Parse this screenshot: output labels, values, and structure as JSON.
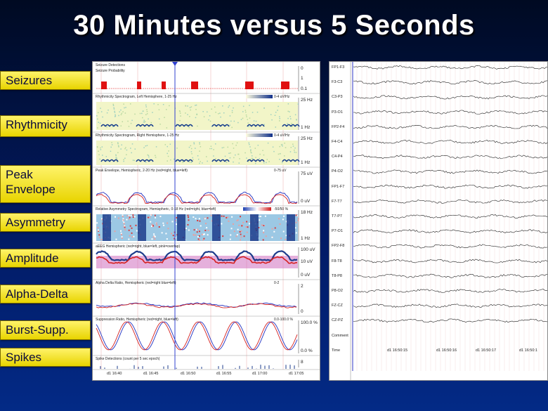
{
  "title": "30 Minutes versus 5 Seconds",
  "labels": [
    "Seizures",
    "Rhythmicity",
    "Peak Envelope",
    "Asymmetry",
    "Amplitude",
    "Alpha-Delta",
    "Burst-Supp.",
    "Spikes"
  ],
  "trend_panels": [
    {
      "title": "Seizure Detections",
      "sub": "Seizure Probability",
      "ax_top": "0",
      "ax_mid": "1",
      "ax_bot": "0.1"
    },
    {
      "title": "Rhythmicity Spectrogram, Left Hemisphere, 1-25 Hz",
      "scale": "0-4 uV/Hz",
      "ax_top": "25 Hz",
      "ax_bot": "1 Hz"
    },
    {
      "title": "Rhythmicity Spectrogram, Right Hemisphere, 1-25 Hz",
      "scale": "0-4 uV/Hz",
      "ax_top": "25 Hz",
      "ax_bot": "1 Hz"
    },
    {
      "title": "Peak Envelope, Hemispheric, 2-20 Hz (red=right, blue=left)",
      "scale": "0-75 uV",
      "ax_top": "75 uV",
      "ax_bot": "0 uV"
    },
    {
      "title": "Relative Asymmetry Spectrogram, Hemispheric, 0-18 Hz (red=right, blue=left)",
      "scale": "-50/50 %",
      "ax_top": "18 Hz",
      "ax_bot": "1 Hz"
    },
    {
      "title": "aEEG Hemispheric (red=right, blue=left, pink=overlap)",
      "ax_top": "100 uV",
      "ax_mid": "10 uV",
      "ax_bot": "0 uV"
    },
    {
      "title": "Alpha Delta Ratio, Hemispheric (red=right blue=left)",
      "scale": "0-2",
      "ax_top": "2",
      "ax_bot": "0"
    },
    {
      "title": "Suppression Ratio, Hemispheric (red=right, blue=left)",
      "scale": "0.0-100.0 %",
      "ax_top": "100.0 %",
      "ax_bot": "0.0 %"
    },
    {
      "title": "Spike Detections (count per 5 sec epoch)",
      "ax_top": "8"
    }
  ],
  "trend_times": [
    "d1 16:40",
    "d1 16:45",
    "d1 16:50",
    "d1 16:55",
    "d1 17:00",
    "d1 17:05"
  ],
  "channels": [
    "FP1-F3",
    "F3-C3",
    "C3-P3",
    "P3-O1",
    "FP2-F4",
    "F4-C4",
    "C4-P4",
    "P4-O2",
    "FP1-F7",
    "F7-T7",
    "T7-P7",
    "P7-O1",
    "FP2-F8",
    "F8-T8",
    "T8-P8",
    "P8-O2",
    "FZ-CZ",
    "CZ-PZ",
    "Comment",
    "Time"
  ],
  "eeg_times": [
    "d1 16:50:15",
    "d1 16:50:16",
    "d1 16:50:17",
    "d1 16:50:1"
  ],
  "colors": {
    "label_bg": "#f2e21a",
    "seizure": "#e01010",
    "right": "#d42020",
    "left": "#2030c0",
    "cursor": "#3040d0"
  }
}
